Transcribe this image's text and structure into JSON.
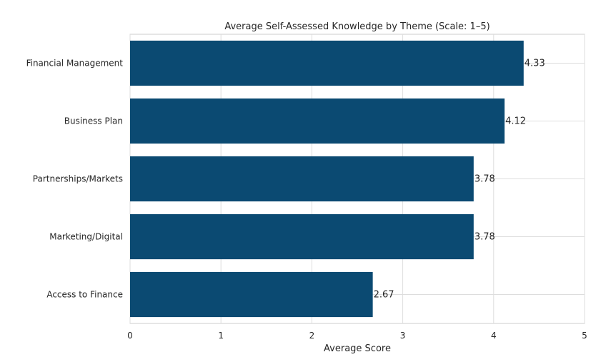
{
  "chart_data": {
    "type": "bar",
    "orientation": "horizontal",
    "title": "Average Self-Assessed Knowledge by Theme (Scale: 1–5)",
    "xlabel": "Average Score",
    "ylabel": "",
    "categories": [
      "Financial Management",
      "Business Plan",
      "Partnerships/Markets",
      "Marketing/Digital",
      "Access to Finance"
    ],
    "values": [
      4.33,
      4.12,
      3.78,
      3.78,
      2.67
    ],
    "value_labels": [
      "4.33",
      "4.12",
      "3.78",
      "3.78",
      "2.67"
    ],
    "xlim": [
      0,
      5
    ],
    "xticks": [
      "0",
      "1",
      "2",
      "3",
      "4",
      "5"
    ],
    "grid": true,
    "legend": "none",
    "bar_color": "#0b4a72"
  }
}
